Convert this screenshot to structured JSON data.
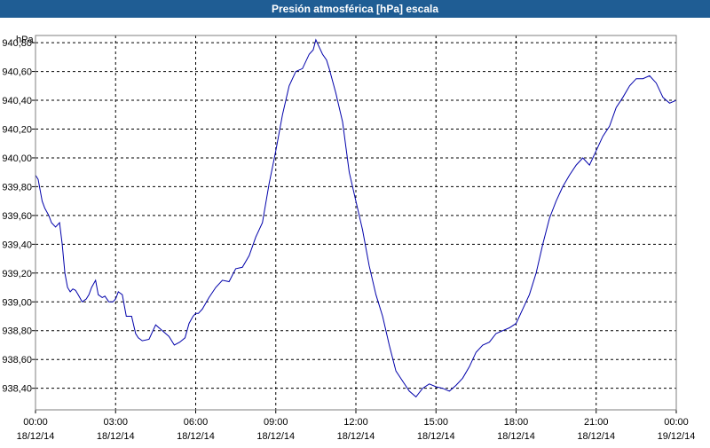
{
  "window": {
    "title": "Presión atmosférica [hPa] escala"
  },
  "chart_data": {
    "type": "line",
    "title": "Presión atmosférica [hPa] escala",
    "ylabel": "hPa",
    "xlabel": "",
    "ylim": [
      938.25,
      940.85
    ],
    "y_ticks": [
      938.4,
      938.6,
      938.8,
      939.0,
      939.2,
      939.4,
      939.6,
      939.8,
      940.0,
      940.2,
      940.4,
      940.6,
      940.8
    ],
    "y_tick_labels": [
      "938,40",
      "938,60",
      "938,80",
      "939,00",
      "939,20",
      "939,40",
      "939,60",
      "939,80",
      "940,00",
      "940,20",
      "940,40",
      "940,60",
      "940,80"
    ],
    "xlim": [
      0,
      24
    ],
    "x_ticks": [
      0,
      3,
      6,
      9,
      12,
      15,
      18,
      21,
      24
    ],
    "x_tick_labels": [
      {
        "time": "00:00",
        "date": "18/12/14"
      },
      {
        "time": "03:00",
        "date": "18/12/14"
      },
      {
        "time": "06:00",
        "date": "18/12/14"
      },
      {
        "time": "09:00",
        "date": "18/12/14"
      },
      {
        "time": "12:00",
        "date": "18/12/14"
      },
      {
        "time": "15:00",
        "date": "18/12/14"
      },
      {
        "time": "18:00",
        "date": "18/12/14"
      },
      {
        "time": "21:00",
        "date": "18/12/14"
      },
      {
        "time": "00:00",
        "date": "19/12/14"
      }
    ],
    "grid": true,
    "series_color": "#0000aa",
    "series": [
      {
        "x": [
          0.0,
          0.1,
          0.25,
          0.35,
          0.5,
          0.6,
          0.75,
          0.9,
          1.0,
          1.1,
          1.2,
          1.3,
          1.4,
          1.5,
          1.6,
          1.75,
          1.9,
          2.0,
          2.1,
          2.25,
          2.35,
          2.5,
          2.6,
          2.75,
          2.9,
          3.0,
          3.1,
          3.25,
          3.4,
          3.5,
          3.6,
          3.75,
          3.85,
          4.0,
          4.25,
          4.5,
          4.75,
          5.0,
          5.2,
          5.4,
          5.6,
          5.75,
          5.9,
          6.0,
          6.1,
          6.25,
          6.5,
          6.75,
          7.0,
          7.25,
          7.5,
          7.75,
          8.0,
          8.25,
          8.5,
          8.75,
          9.0,
          9.25,
          9.5,
          9.75,
          10.0,
          10.25,
          10.4,
          10.5,
          10.6,
          10.75,
          10.9,
          11.0,
          11.25,
          11.5,
          11.75,
          12.0,
          12.25,
          12.5,
          12.75,
          13.0,
          13.25,
          13.5,
          13.75,
          14.0,
          14.25,
          14.5,
          14.75,
          15.0,
          15.25,
          15.5,
          15.75,
          16.0,
          16.25,
          16.5,
          16.75,
          17.0,
          17.25,
          17.5,
          17.75,
          18.0,
          18.25,
          18.5,
          18.75,
          19.0,
          19.25,
          19.5,
          19.75,
          20.0,
          20.25,
          20.5,
          20.75,
          21.0,
          21.25,
          21.5,
          21.75,
          22.0,
          22.25,
          22.5,
          22.75,
          23.0,
          23.25,
          23.5,
          23.75,
          24.0
        ],
        "y": [
          939.88,
          939.85,
          939.7,
          939.65,
          939.6,
          939.55,
          939.52,
          939.55,
          939.4,
          939.2,
          939.1,
          939.07,
          939.09,
          939.08,
          939.05,
          939.0,
          939.02,
          939.05,
          939.1,
          939.15,
          939.05,
          939.03,
          939.04,
          939.0,
          939.0,
          939.02,
          939.07,
          939.05,
          938.9,
          938.9,
          938.9,
          938.78,
          938.75,
          938.73,
          938.74,
          938.84,
          938.8,
          938.76,
          938.7,
          938.72,
          938.75,
          938.85,
          938.9,
          938.92,
          938.92,
          938.95,
          939.03,
          939.1,
          939.15,
          939.14,
          939.23,
          939.24,
          939.32,
          939.45,
          939.55,
          939.82,
          940.05,
          940.3,
          940.5,
          940.6,
          940.62,
          940.72,
          940.75,
          940.82,
          940.78,
          940.72,
          940.68,
          940.62,
          940.45,
          940.25,
          939.9,
          939.7,
          939.5,
          939.25,
          939.05,
          938.9,
          938.7,
          938.52,
          938.45,
          938.38,
          938.34,
          938.4,
          938.43,
          938.41,
          938.4,
          938.38,
          938.42,
          938.47,
          938.55,
          938.65,
          938.7,
          938.72,
          938.78,
          938.8,
          938.82,
          938.85,
          938.95,
          939.05,
          939.2,
          939.4,
          939.58,
          939.7,
          939.8,
          939.88,
          939.95,
          940.0,
          939.95,
          940.05,
          940.15,
          940.22,
          940.35,
          940.42,
          940.5,
          940.55,
          940.55,
          940.57,
          940.52,
          940.42,
          940.38,
          940.4
        ]
      }
    ]
  }
}
